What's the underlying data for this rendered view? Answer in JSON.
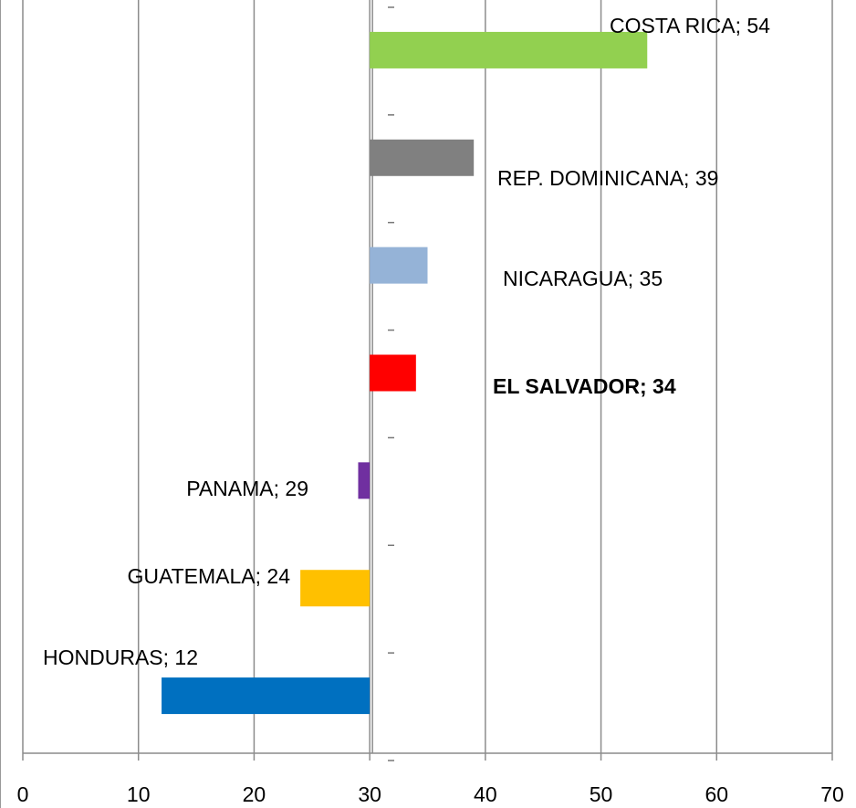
{
  "chart_data": {
    "type": "bar",
    "orientation": "horizontal",
    "value_labels": [
      "HONDURAS; 12",
      "GUATEMALA; 24",
      "PANAMA; 29",
      "EL SALVADOR; 34",
      "NICARAGUA; 35",
      "REP. DOMINICANA; 39",
      "COSTA RICA; 54"
    ],
    "values": [
      12,
      24,
      29,
      34,
      35,
      39,
      54
    ],
    "colors": [
      "#0070c0",
      "#ffc000",
      "#7030a0",
      "#ff0000",
      "#95b3d7",
      "#808080",
      "#92d050"
    ],
    "base": 30,
    "xlim": [
      0,
      70
    ],
    "xticks": [
      0,
      10,
      20,
      30,
      40,
      50,
      60,
      70
    ],
    "grid": true
  }
}
